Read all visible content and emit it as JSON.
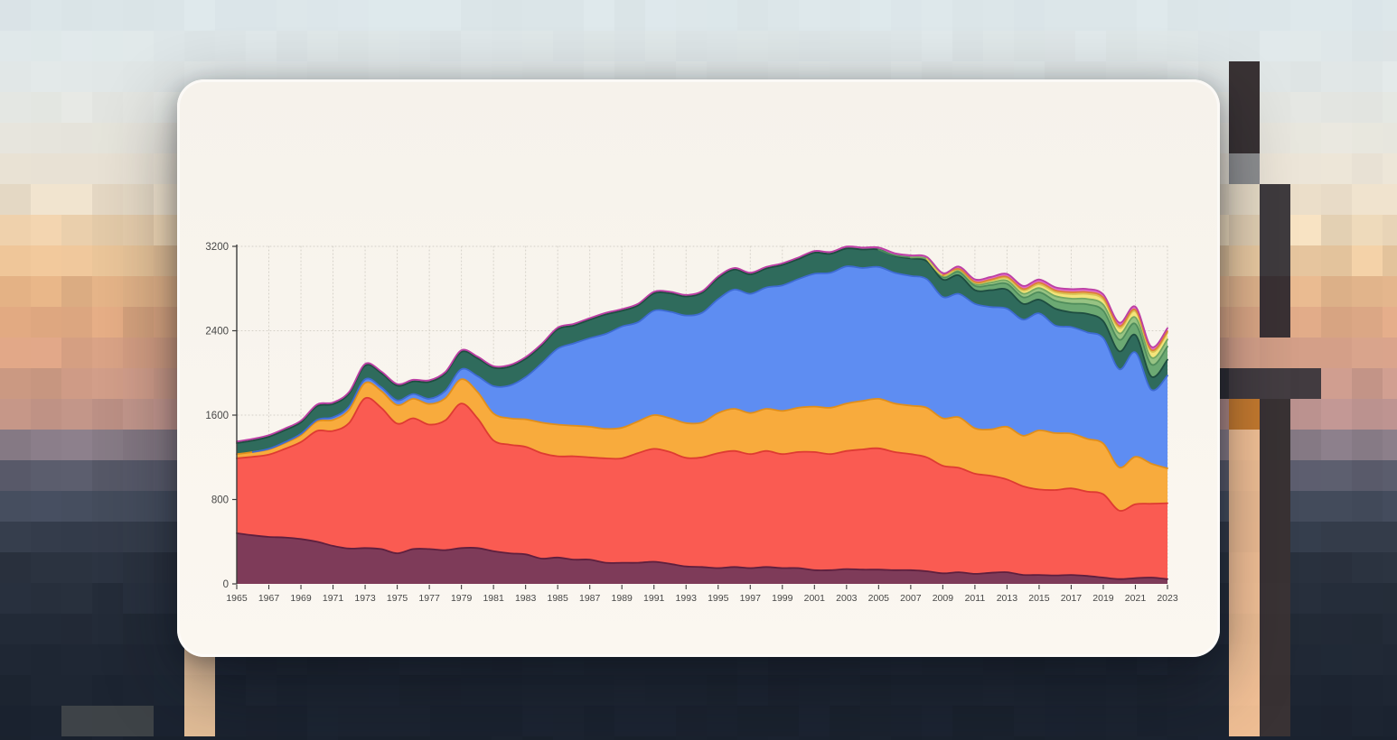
{
  "card": {
    "surface_color": "#f8f4ed"
  },
  "axes": {
    "axis_color": "#3c3c3c",
    "grid_color": "#d3cfc6",
    "label_color": "#474747"
  },
  "background": {
    "sky_stops": [
      [
        0,
        "#dbe6ea"
      ],
      [
        85,
        "#e1e7e7"
      ],
      [
        150,
        "#e7e6de"
      ],
      [
        205,
        "#ece2d2"
      ],
      [
        250,
        "#eedcbf"
      ],
      [
        295,
        "#e9c69c"
      ],
      [
        340,
        "#dfab83"
      ],
      [
        395,
        "#d5a08a"
      ],
      [
        455,
        "#c29590"
      ],
      [
        490,
        "#8d7f8a"
      ],
      [
        520,
        "#5f5f6f"
      ],
      [
        555,
        "#474f60"
      ],
      [
        590,
        "#363e4d"
      ],
      [
        625,
        "#2b3340"
      ],
      [
        680,
        "#242c39"
      ],
      [
        760,
        "#1d2532"
      ],
      [
        820,
        "#1a222f"
      ]
    ],
    "pole_color": "#393234",
    "pole_highlight": "#f2c096",
    "pole_orange": "#c87c2f"
  },
  "chart_data": {
    "type": "area",
    "stacked": true,
    "title": "",
    "xlabel": "",
    "ylabel": "",
    "grid": "dotted",
    "legend": "none",
    "ylim": [
      0,
      3200
    ],
    "y_ticks": [
      0,
      800,
      1600,
      2400,
      3200
    ],
    "y_tick_labels": [
      "0",
      "800",
      "1600",
      "2400",
      "3200"
    ],
    "x_start": 1965,
    "x_end": 2023,
    "x_tick_labels": [
      "1965",
      "1967",
      "1969",
      "1971",
      "1973",
      "1975",
      "1977",
      "1979",
      "1981",
      "1983",
      "1985",
      "1987",
      "1989",
      "1991",
      "1993",
      "1995",
      "1997",
      "1999",
      "2001",
      "2003",
      "2005",
      "2007",
      "2009",
      "2011",
      "2013",
      "2015",
      "2017",
      "2019",
      "2021",
      "2023"
    ],
    "series": [
      {
        "name": "maroon",
        "fill": "#7E3B59",
        "stroke": "#5E1F3E",
        "values": [
          480,
          460,
          445,
          440,
          425,
          400,
          360,
          335,
          340,
          330,
          290,
          330,
          330,
          320,
          340,
          340,
          310,
          290,
          280,
          240,
          250,
          230,
          230,
          200,
          200,
          200,
          210,
          190,
          165,
          160,
          150,
          160,
          150,
          160,
          150,
          150,
          130,
          130,
          140,
          135,
          135,
          130,
          130,
          120,
          100,
          110,
          95,
          105,
          110,
          85,
          85,
          80,
          85,
          75,
          60,
          45,
          55,
          60,
          45
        ]
      },
      {
        "name": "red",
        "fill": "#FA5B52",
        "stroke": "#DE3B32",
        "values": [
          710,
          745,
          780,
          840,
          920,
          1050,
          1090,
          1190,
          1420,
          1340,
          1230,
          1240,
          1180,
          1230,
          1370,
          1230,
          1050,
          1030,
          1020,
          1000,
          960,
          980,
          970,
          990,
          990,
          1040,
          1070,
          1060,
          1030,
          1040,
          1090,
          1100,
          1080,
          1100,
          1080,
          1100,
          1120,
          1100,
          1120,
          1140,
          1150,
          1120,
          1100,
          1080,
          1020,
          990,
          950,
          920,
          880,
          840,
          810,
          810,
          820,
          800,
          790,
          650,
          700,
          700,
          720
        ]
      },
      {
        "name": "amber",
        "fill": "#F8AB3D",
        "stroke": "#E08E1B",
        "values": [
          40,
          45,
          50,
          55,
          65,
          90,
          105,
          125,
          145,
          160,
          175,
          185,
          195,
          210,
          230,
          250,
          255,
          250,
          260,
          290,
          300,
          290,
          290,
          280,
          290,
          300,
          320,
          320,
          330,
          330,
          380,
          400,
          390,
          400,
          410,
          420,
          430,
          440,
          450,
          460,
          470,
          460,
          460,
          470,
          450,
          480,
          430,
          440,
          500,
          480,
          560,
          540,
          520,
          500,
          480,
          410,
          450,
          380,
          330
        ]
      },
      {
        "name": "blue",
        "fill": "#5E8DF2",
        "stroke": "#3E6BD3",
        "values": [
          0,
          0,
          5,
          8,
          12,
          15,
          25,
          30,
          35,
          35,
          45,
          45,
          50,
          70,
          95,
          150,
          260,
          310,
          400,
          560,
          720,
          780,
          840,
          900,
          960,
          940,
          990,
          1010,
          1020,
          1040,
          1080,
          1130,
          1130,
          1150,
          1190,
          1220,
          1260,
          1280,
          1300,
          1260,
          1250,
          1240,
          1230,
          1220,
          1150,
          1170,
          1180,
          1160,
          1120,
          1100,
          1110,
          1020,
          1010,
          1010,
          1000,
          930,
          990,
          700,
          880
        ]
      },
      {
        "name": "teal",
        "fill": "#2F6B5C",
        "stroke": "#1E4D40",
        "values": [
          105,
          110,
          115,
          115,
          110,
          130,
          125,
          125,
          130,
          135,
          140,
          120,
          160,
          165,
          165,
          170,
          175,
          180,
          175,
          170,
          185,
          170,
          175,
          185,
          150,
          160,
          165,
          175,
          180,
          190,
          200,
          190,
          185,
          180,
          195,
          190,
          200,
          180,
          170,
          175,
          165,
          160,
          165,
          170,
          165,
          175,
          130,
          160,
          180,
          150,
          130,
          160,
          140,
          175,
          160,
          170,
          165,
          125,
          150
        ]
      },
      {
        "name": "green",
        "fill": "#6CA973",
        "stroke": "#4F8C5B",
        "values": [
          0,
          0,
          0,
          0,
          0,
          0,
          0,
          0,
          0,
          0,
          0,
          0,
          0,
          0,
          0,
          0,
          0,
          0,
          0,
          0,
          0,
          0,
          0,
          0,
          0,
          0,
          0,
          0,
          0,
          0,
          0,
          0,
          0,
          0,
          0,
          0,
          0,
          0,
          0,
          0,
          0,
          5,
          10,
          16,
          24,
          32,
          40,
          48,
          55,
          62,
          70,
          75,
          82,
          90,
          100,
          110,
          105,
          115,
          125
        ]
      },
      {
        "name": "light-green",
        "fill": "#97C383",
        "stroke": "#74A862",
        "values": [
          0,
          0,
          0,
          0,
          0,
          0,
          0,
          0,
          0,
          0,
          0,
          0,
          0,
          0,
          0,
          0,
          0,
          0,
          0,
          0,
          0,
          0,
          0,
          0,
          0,
          0,
          0,
          0,
          0,
          0,
          0,
          0,
          0,
          0,
          0,
          0,
          0,
          0,
          0,
          0,
          0,
          0,
          0,
          5,
          10,
          14,
          18,
          24,
          30,
          35,
          40,
          44,
          48,
          52,
          56,
          60,
          62,
          65,
          68
        ]
      },
      {
        "name": "yellow",
        "fill": "#F4E47B",
        "stroke": "#D9C353",
        "values": [
          0,
          0,
          0,
          0,
          0,
          0,
          0,
          0,
          0,
          0,
          0,
          0,
          0,
          0,
          0,
          0,
          0,
          0,
          0,
          0,
          0,
          0,
          0,
          0,
          0,
          0,
          0,
          0,
          0,
          0,
          0,
          0,
          0,
          0,
          0,
          0,
          0,
          0,
          0,
          0,
          0,
          0,
          0,
          0,
          6,
          10,
          12,
          18,
          24,
          30,
          35,
          38,
          42,
          46,
          50,
          52,
          55,
          58,
          62
        ]
      },
      {
        "name": "orange",
        "fill": "#F2A45B",
        "stroke": "#DB8238",
        "values": [
          0,
          0,
          0,
          0,
          0,
          0,
          0,
          0,
          0,
          0,
          0,
          0,
          0,
          0,
          0,
          0,
          0,
          0,
          0,
          0,
          0,
          0,
          0,
          0,
          0,
          0,
          0,
          0,
          0,
          0,
          0,
          0,
          0,
          0,
          0,
          0,
          0,
          0,
          0,
          0,
          0,
          0,
          0,
          0,
          0,
          5,
          8,
          10,
          12,
          14,
          16,
          16,
          18,
          18,
          18,
          18,
          16,
          15,
          15
        ]
      },
      {
        "name": "pink",
        "fill": "#E069C9",
        "stroke": "#BC3FA4",
        "values": [
          15,
          15,
          15,
          15,
          15,
          15,
          15,
          15,
          15,
          15,
          15,
          15,
          15,
          15,
          15,
          15,
          15,
          15,
          15,
          15,
          15,
          15,
          15,
          15,
          15,
          15,
          15,
          15,
          15,
          15,
          15,
          15,
          15,
          15,
          15,
          15,
          16,
          17,
          18,
          19,
          20,
          20,
          20,
          20,
          22,
          22,
          25,
          26,
          28,
          29,
          30,
          30,
          30,
          30,
          30,
          32,
          30,
          30,
          30
        ]
      }
    ]
  }
}
